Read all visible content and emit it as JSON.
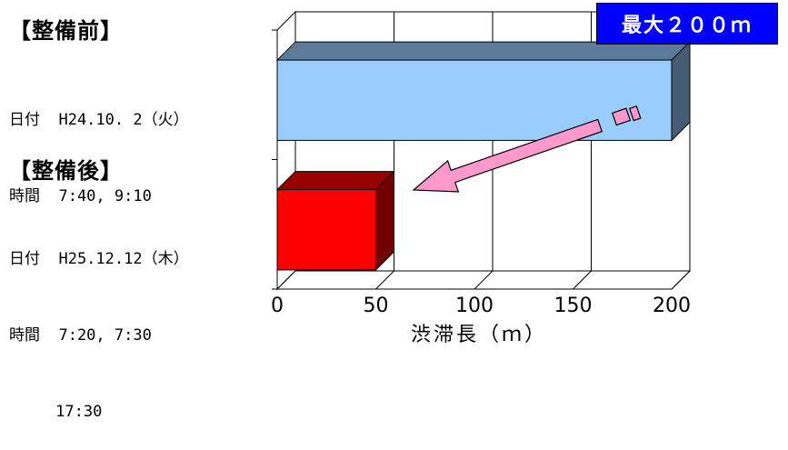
{
  "before": {
    "heading": "【整備前】",
    "date_line": "日付  H24.10. 2（火）",
    "time_line": "時間  7:40, 9:10"
  },
  "after": {
    "heading": "【整備後】",
    "date_line": "日付  H25.12.12（木）",
    "time_line": "時間  7:20, 7:30",
    "time_line2": "     17:30"
  },
  "badge": {
    "text": "最大２００ｍ",
    "bg_color": "#0000ff",
    "text_color": "#ffffff"
  },
  "chart_data": {
    "type": "bar",
    "orientation": "horizontal",
    "style": "3d",
    "categories": [
      "整備前",
      "整備後"
    ],
    "values": [
      200,
      50
    ],
    "bar_colors": [
      "#99ccff",
      "#ff0000"
    ],
    "xlabel": "渋滞長（ｍ）",
    "ylabel": "",
    "xlim": [
      0,
      200
    ],
    "xticks": [
      0,
      50,
      100,
      150,
      200
    ],
    "grid": true,
    "annotation": "arrow from the 200 m bar to the 50 m bar"
  }
}
